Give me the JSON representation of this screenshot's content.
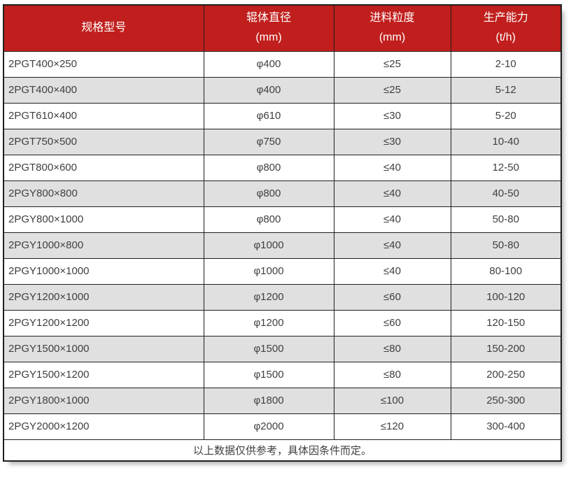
{
  "chart_data": {
    "type": "table",
    "title": "",
    "columns": [
      "规格型号",
      "辊体直径 (mm)",
      "进料粒度 (mm)",
      "生产能力 (t/h)"
    ],
    "rows": [
      [
        "2PGT400×250",
        "φ400",
        "≤25",
        "2-10"
      ],
      [
        "2PGT400×400",
        "φ400",
        "≤25",
        "5-12"
      ],
      [
        "2PGT610×400",
        "φ610",
        "≤30",
        "5-20"
      ],
      [
        "2PGT750×500",
        "φ750",
        "≤30",
        "10-40"
      ],
      [
        "2PGT800×600",
        "φ800",
        "≤40",
        "12-50"
      ],
      [
        "2PGY800×800",
        "φ800",
        "≤40",
        "40-50"
      ],
      [
        "2PGY800×1000",
        "φ800",
        "≤40",
        "50-80"
      ],
      [
        "2PGY1000×800",
        "φ1000",
        "≤40",
        "50-80"
      ],
      [
        "2PGY1000×1000",
        "φ1000",
        "≤40",
        "80-100"
      ],
      [
        "2PGY1200×1000",
        "φ1200",
        "≤60",
        "100-120"
      ],
      [
        "2PGY1200×1200",
        "φ1200",
        "≤60",
        "120-150"
      ],
      [
        "2PGY1500×1000",
        "φ1500",
        "≤80",
        "150-200"
      ],
      [
        "2PGY1500×1200",
        "φ1500",
        "≤80",
        "200-250"
      ],
      [
        "2PGY1800×1000",
        "φ1800",
        "≤100",
        "250-300"
      ],
      [
        "2PGY2000×1200",
        "φ2000",
        "≤120",
        "300-400"
      ]
    ],
    "footnote": "以上数据仅供参考，具体因条件而定。"
  },
  "table": {
    "headers": [
      {
        "line1": "规格型号",
        "line2": ""
      },
      {
        "line1": "辊体直径",
        "line2": "(mm)"
      },
      {
        "line1": "进料粒度",
        "line2": "(mm)"
      },
      {
        "line1": "生产能力",
        "line2": "(t/h)"
      }
    ],
    "rows": [
      [
        "2PGT400×250",
        "φ400",
        "≤25",
        "2-10"
      ],
      [
        "2PGT400×400",
        "φ400",
        "≤25",
        "5-12"
      ],
      [
        "2PGT610×400",
        "φ610",
        "≤30",
        "5-20"
      ],
      [
        "2PGT750×500",
        "φ750",
        "≤30",
        "10-40"
      ],
      [
        "2PGT800×600",
        "φ800",
        "≤40",
        "12-50"
      ],
      [
        "2PGY800×800",
        "φ800",
        "≤40",
        "40-50"
      ],
      [
        "2PGY800×1000",
        "φ800",
        "≤40",
        "50-80"
      ],
      [
        "2PGY1000×800",
        "φ1000",
        "≤40",
        "50-80"
      ],
      [
        "2PGY1000×1000",
        "φ1000",
        "≤40",
        "80-100"
      ],
      [
        "2PGY1200×1000",
        "φ1200",
        "≤60",
        "100-120"
      ],
      [
        "2PGY1200×1200",
        "φ1200",
        "≤60",
        "120-150"
      ],
      [
        "2PGY1500×1000",
        "φ1500",
        "≤80",
        "150-200"
      ],
      [
        "2PGY1500×1200",
        "φ1500",
        "≤80",
        "200-250"
      ],
      [
        "2PGY1800×1000",
        "φ1800",
        "≤100",
        "250-300"
      ],
      [
        "2PGY2000×1200",
        "φ2000",
        "≤120",
        "300-400"
      ]
    ],
    "footer": "以上数据仅供参考，具体因条件而定。",
    "colors": {
      "header_bg": "#c01f1d",
      "header_text": "#ffffff",
      "row_bg": "#ffffff",
      "row_alt_bg": "#e0e0e0",
      "border": "#1f1f1f",
      "cell_text": "#404040"
    }
  }
}
